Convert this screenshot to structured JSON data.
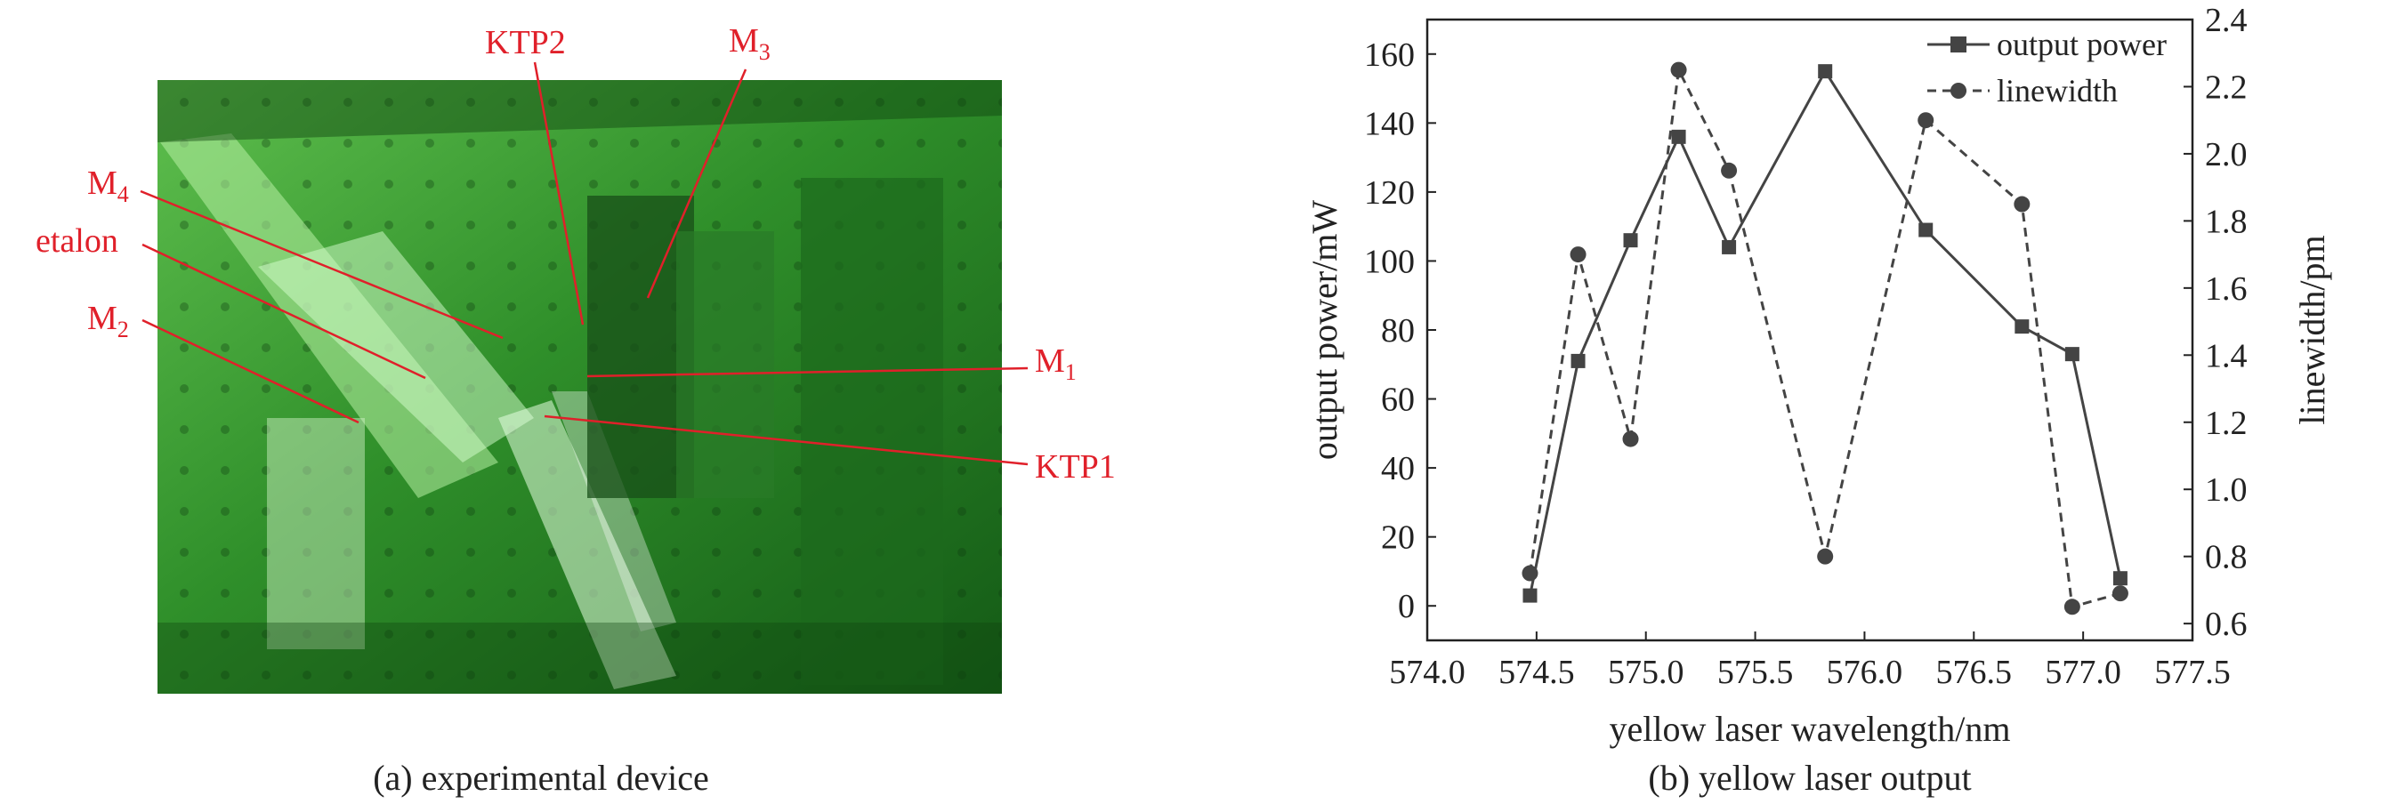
{
  "panel_a": {
    "caption": "(a) experimental device",
    "labels": {
      "ktp2": "KTP2",
      "m3_base": "M",
      "m3_sub": "3",
      "m4_base": "M",
      "m4_sub": "4",
      "etalon": "etalon",
      "m2_base": "M",
      "m2_sub": "2",
      "m1_base": "M",
      "m1_sub": "1",
      "ktp1": "KTP1"
    },
    "colors": {
      "label": "#e0202a",
      "photo_tint": "#2f8f2a"
    }
  },
  "panel_b": {
    "caption": "(b) yellow laser output"
  },
  "chart_data": {
    "type": "line",
    "xlabel": "yellow laser wavelength/nm",
    "ylabel": "output power/mW",
    "y2label": "linewidth/pm",
    "xlim": [
      574.0,
      577.5
    ],
    "ylim": [
      -10,
      170
    ],
    "y2lim": [
      0.55,
      2.4
    ],
    "xticks": [
      "574.0",
      "574.5",
      "575.0",
      "575.5",
      "576.0",
      "576.5",
      "577.0",
      "577.5"
    ],
    "yticks": [
      "0",
      "20",
      "40",
      "60",
      "80",
      "100",
      "120",
      "140",
      "160"
    ],
    "y2ticks": [
      "0.6",
      "0.8",
      "1.0",
      "1.2",
      "1.4",
      "1.6",
      "1.8",
      "2.0",
      "2.2",
      "2.4"
    ],
    "legend_position": "top-right",
    "series": [
      {
        "name": "output power",
        "axis": "left",
        "style": "solid",
        "marker": "square",
        "color": "#444444",
        "x": [
          574.47,
          574.69,
          574.93,
          575.15,
          575.38,
          575.82,
          576.28,
          576.72,
          576.95,
          577.17
        ],
        "y": [
          3,
          71,
          106,
          136,
          104,
          155,
          109,
          81,
          73,
          8
        ]
      },
      {
        "name": "linewidth",
        "axis": "right",
        "style": "dashed",
        "marker": "circle",
        "color": "#444444",
        "x": [
          574.47,
          574.69,
          574.93,
          575.15,
          575.38,
          575.82,
          576.28,
          576.72,
          576.95,
          577.17
        ],
        "y": [
          0.75,
          1.7,
          1.15,
          2.25,
          1.95,
          0.8,
          2.1,
          1.85,
          0.65,
          0.69
        ]
      }
    ]
  }
}
